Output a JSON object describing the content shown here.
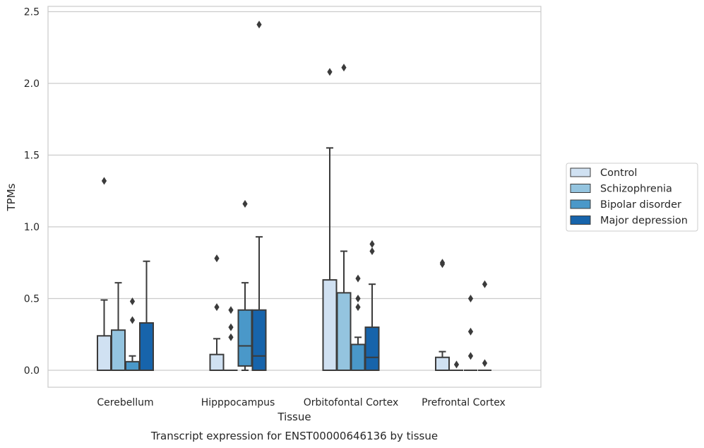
{
  "caption": "Transcript expression for ENST00000646136 by tissue",
  "chart_data": {
    "type": "box",
    "xlabel": "Tissue",
    "ylabel": "TPMs",
    "ylim": [
      -0.12,
      2.55
    ],
    "yticks": [
      "0.0",
      "0.5",
      "1.0",
      "1.5",
      "2.0",
      "2.5"
    ],
    "ytick_values": [
      0,
      0.5,
      1.0,
      1.5,
      2.0,
      2.5
    ],
    "grid": "horizontal",
    "legend_position": "right",
    "categories": [
      "Cerebellum",
      "Hipppocampus",
      "Orbitofontal Cortex",
      "Prefrontal Cortex"
    ],
    "series": [
      {
        "name": "Control",
        "color": "#d0e1f2",
        "boxes": [
          {
            "q1": 0,
            "median": 0,
            "q3": 0.24,
            "whisker_low": 0,
            "whisker_high": 0.49,
            "outliers": [
              1.32
            ]
          },
          {
            "q1": 0,
            "median": 0,
            "q3": 0.11,
            "whisker_low": 0,
            "whisker_high": 0.22,
            "outliers": [
              0.78,
              0.44
            ]
          },
          {
            "q1": 0,
            "median": 0,
            "q3": 0.63,
            "whisker_low": 0,
            "whisker_high": 1.55,
            "outliers": [
              2.08
            ]
          },
          {
            "q1": 0,
            "median": 0,
            "q3": 0.09,
            "whisker_low": 0,
            "whisker_high": 0.13,
            "outliers": [
              0.75,
              0.74
            ]
          }
        ]
      },
      {
        "name": "Schizophrenia",
        "color": "#94c4df",
        "boxes": [
          {
            "q1": 0,
            "median": 0,
            "q3": 0.28,
            "whisker_low": 0,
            "whisker_high": 0.61,
            "outliers": []
          },
          {
            "q1": 0,
            "median": 0,
            "q3": 0,
            "whisker_low": 0,
            "whisker_high": 0,
            "outliers": [
              0.42,
              0.3,
              0.23
            ]
          },
          {
            "q1": 0,
            "median": 0,
            "q3": 0.54,
            "whisker_low": 0,
            "whisker_high": 0.83,
            "outliers": [
              2.11
            ]
          },
          {
            "q1": 0,
            "median": 0,
            "q3": 0,
            "whisker_low": 0,
            "whisker_high": 0,
            "outliers": [
              0.04
            ]
          }
        ]
      },
      {
        "name": "Bipolar disorder",
        "color": "#4a98c9",
        "boxes": [
          {
            "q1": 0,
            "median": 0,
            "q3": 0.06,
            "whisker_low": 0,
            "whisker_high": 0.1,
            "outliers": [
              0.48,
              0.35
            ]
          },
          {
            "q1": 0.03,
            "median": 0.17,
            "q3": 0.42,
            "whisker_low": 0,
            "whisker_high": 0.61,
            "outliers": [
              1.16
            ]
          },
          {
            "q1": 0,
            "median": 0,
            "q3": 0.18,
            "whisker_low": 0,
            "whisker_high": 0.23,
            "outliers": [
              0.64,
              0.5,
              0.44
            ]
          },
          {
            "q1": 0,
            "median": 0,
            "q3": 0,
            "whisker_low": 0,
            "whisker_high": 0,
            "outliers": [
              0.5,
              0.27,
              0.1
            ]
          }
        ]
      },
      {
        "name": "Major depression",
        "color": "#1764ab",
        "boxes": [
          {
            "q1": 0,
            "median": 0,
            "q3": 0.33,
            "whisker_low": 0,
            "whisker_high": 0.76,
            "outliers": []
          },
          {
            "q1": 0,
            "median": 0.1,
            "q3": 0.42,
            "whisker_low": 0,
            "whisker_high": 0.93,
            "outliers": [
              2.41
            ]
          },
          {
            "q1": 0,
            "median": 0.09,
            "q3": 0.3,
            "whisker_low": 0,
            "whisker_high": 0.6,
            "outliers": [
              0.88,
              0.83
            ]
          },
          {
            "q1": 0,
            "median": 0,
            "q3": 0,
            "whisker_low": 0,
            "whisker_high": 0,
            "outliers": [
              0.6,
              0.05
            ]
          }
        ]
      }
    ]
  }
}
